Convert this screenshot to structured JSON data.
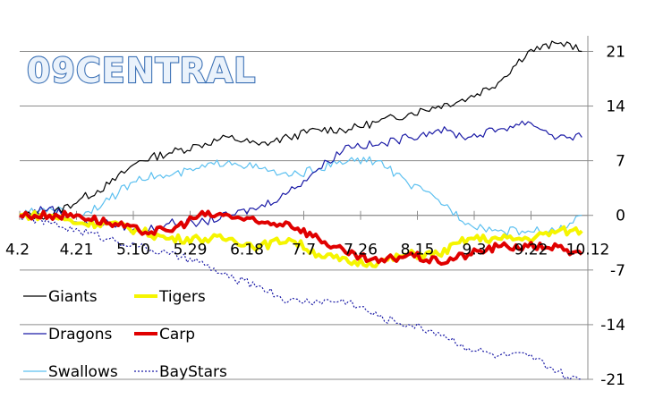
{
  "chart_data": {
    "type": "line",
    "title": "09CENTRAL",
    "xlabel": "",
    "ylabel": "",
    "x_tick_labels": [
      "4.2",
      "4.21",
      "5.10",
      "5.29",
      "6.18",
      "7.7",
      "7.26",
      "8.15",
      "9.3",
      "9.22",
      "10.12"
    ],
    "x_tick_games": [
      0,
      19,
      38,
      57,
      76,
      95,
      114,
      133,
      152,
      171,
      190
    ],
    "xlim": [
      0,
      190
    ],
    "ylim": [
      -21,
      23
    ],
    "y_ticks": [
      21,
      14,
      7,
      0,
      -7,
      -14,
      -21
    ],
    "grid": "horizontal",
    "legend_position": "bottom-left",
    "series": [
      {
        "name": "Giants",
        "color": "#000000",
        "width": 1.2,
        "dash": "",
        "x": [
          0,
          10,
          20,
          30,
          40,
          50,
          60,
          70,
          80,
          90,
          100,
          110,
          120,
          130,
          140,
          150,
          160,
          170,
          180,
          184,
          188
        ],
        "y": [
          0,
          0,
          2,
          4,
          7,
          8,
          9,
          10,
          9,
          10,
          11,
          11,
          12,
          13,
          14,
          15,
          17,
          21,
          22,
          22,
          21
        ]
      },
      {
        "name": "Tigers",
        "color": "#f5f500",
        "width": 4,
        "dash": "",
        "x": [
          0,
          10,
          20,
          30,
          40,
          50,
          60,
          70,
          80,
          90,
          100,
          110,
          120,
          130,
          140,
          150,
          160,
          170,
          180,
          184,
          188
        ],
        "y": [
          0,
          0,
          -1,
          -1,
          -2,
          -3,
          -3,
          -3,
          -4,
          -3,
          -5,
          -6,
          -6,
          -5,
          -5,
          -3,
          -3,
          -3,
          -2,
          -2,
          -2
        ]
      },
      {
        "name": "Dragons",
        "color": "#1a1aa6",
        "width": 1.2,
        "dash": "",
        "x": [
          0,
          10,
          20,
          30,
          40,
          50,
          60,
          70,
          80,
          90,
          100,
          110,
          120,
          130,
          140,
          150,
          160,
          170,
          180,
          184,
          188
        ],
        "y": [
          0,
          1,
          -1,
          -1,
          -2,
          -1,
          -1,
          0,
          1,
          3,
          6,
          9,
          9,
          10,
          11,
          10,
          11,
          12,
          10,
          10,
          10
        ]
      },
      {
        "name": "Carp",
        "color": "#e00000",
        "width": 4,
        "dash": "",
        "x": [
          0,
          10,
          20,
          30,
          40,
          50,
          60,
          70,
          80,
          90,
          100,
          110,
          120,
          130,
          140,
          150,
          160,
          170,
          180,
          184,
          188
        ],
        "y": [
          0,
          0,
          0,
          -1,
          -2,
          -2,
          0,
          0,
          -1,
          -1,
          -3,
          -5,
          -6,
          -5,
          -6,
          -5,
          -4,
          -4,
          -4,
          -5,
          -5
        ]
      },
      {
        "name": "Swallows",
        "color": "#5cc0f0",
        "width": 1.2,
        "dash": "",
        "x": [
          0,
          10,
          20,
          30,
          40,
          50,
          60,
          70,
          80,
          90,
          100,
          110,
          120,
          130,
          140,
          150,
          160,
          170,
          180,
          184,
          188
        ],
        "y": [
          0,
          1,
          0,
          2,
          5,
          5,
          6,
          7,
          6,
          5,
          6,
          7,
          7,
          4,
          2,
          -1,
          -2,
          -2,
          -2,
          -1,
          0
        ]
      },
      {
        "name": "BayStars",
        "color": "#1a1aa6",
        "width": 1.2,
        "dash": "2 2",
        "x": [
          0,
          10,
          20,
          30,
          40,
          50,
          60,
          70,
          80,
          90,
          100,
          110,
          120,
          130,
          140,
          150,
          160,
          170,
          180,
          184,
          188
        ],
        "y": [
          0,
          -1,
          -2,
          -3,
          -4,
          -5,
          -6,
          -8,
          -9,
          -11,
          -11,
          -11,
          -13,
          -14,
          -15,
          -17,
          -18,
          -18,
          -20,
          -21,
          -21
        ]
      }
    ]
  }
}
